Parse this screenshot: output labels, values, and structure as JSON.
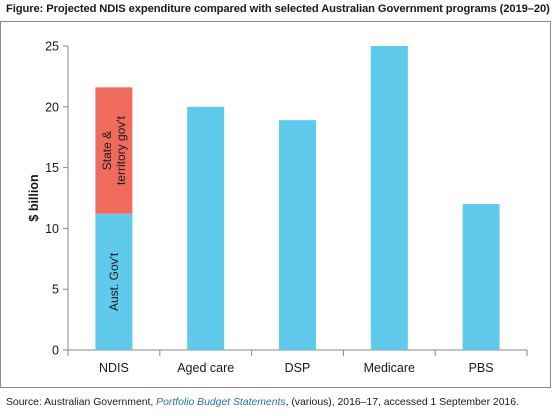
{
  "figure": {
    "title": "Figure: Projected NDIS expenditure compared with selected Australian Government programs (2019–20)",
    "source_prefix": "Source: Australian Government, ",
    "source_publication": "Portfolio Budget Statements",
    "source_suffix": ", (various), 2016–17, accessed 1 September 2016."
  },
  "chart_data": {
    "type": "bar",
    "stacked": true,
    "title": "",
    "xlabel": "",
    "ylabel": "$ billion",
    "ylim": [
      0,
      25
    ],
    "yticks": [
      0,
      5,
      10,
      15,
      20,
      25
    ],
    "grid": false,
    "categories": [
      "NDIS",
      "Aged care",
      "DSP",
      "Medicare",
      "PBS"
    ],
    "series": [
      {
        "name": "Aust. Gov't",
        "color": "#5fcaeb",
        "values": [
          11.2,
          20.0,
          18.9,
          25.0,
          12.0
        ]
      },
      {
        "name": "State & territory gov't",
        "color": "#ee6b5e",
        "values": [
          10.4,
          0,
          0,
          0,
          0
        ]
      }
    ],
    "in_bar_labels": [
      {
        "category": "NDIS",
        "series": "Aust. Gov't",
        "lines": [
          "Aust. Gov't"
        ]
      },
      {
        "category": "NDIS",
        "series": "State & territory gov't",
        "lines": [
          "State &",
          "territory gov't"
        ]
      }
    ]
  }
}
